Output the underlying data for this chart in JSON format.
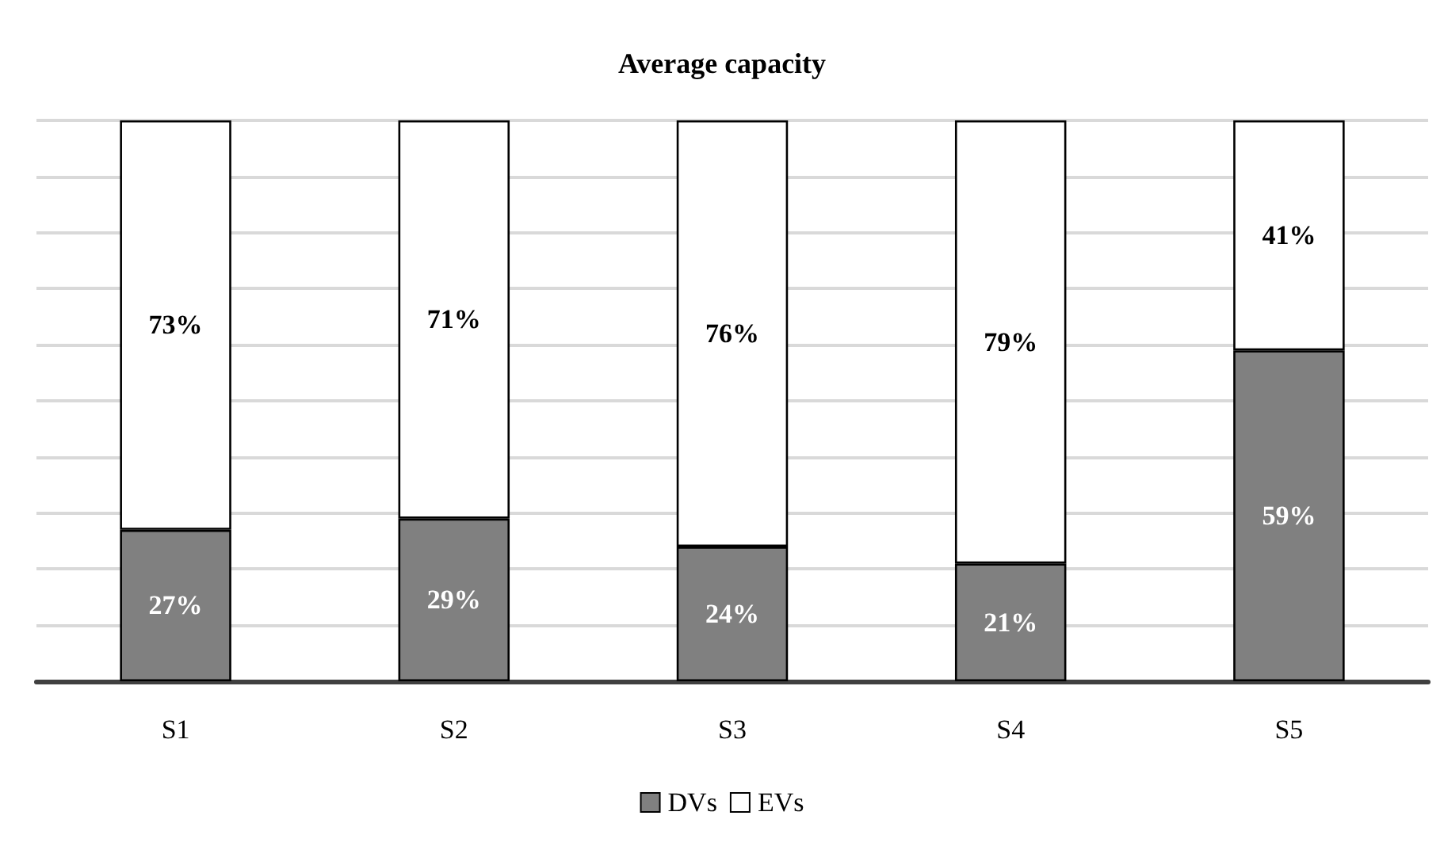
{
  "chart_data": {
    "type": "bar",
    "title": "Average capacity",
    "categories": [
      "S1",
      "S2",
      "S3",
      "S4",
      "S5"
    ],
    "stacked": true,
    "series": [
      {
        "name": "DVs",
        "color": "#808080",
        "values": [
          27,
          29,
          24,
          21,
          59
        ],
        "value_labels": [
          "27%",
          "29%",
          "24%",
          "21%",
          "59%"
        ]
      },
      {
        "name": "EVs",
        "color": "#ffffff",
        "values": [
          73,
          71,
          76,
          79,
          41
        ],
        "value_labels": [
          "73%",
          "71%",
          "76%",
          "79%",
          "41%"
        ]
      }
    ],
    "ylim": [
      0,
      100
    ],
    "tick_labels": "x",
    "grid": "y",
    "legend": "bottom"
  }
}
